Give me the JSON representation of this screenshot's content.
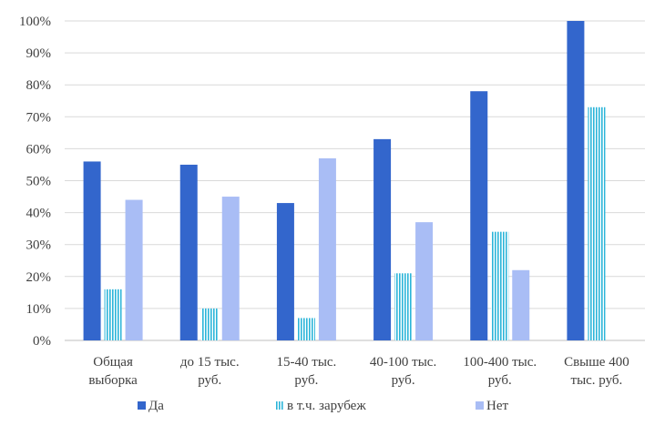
{
  "chart_data": {
    "type": "bar",
    "title": "",
    "xlabel": "",
    "ylabel": "",
    "ylim": [
      0,
      100
    ],
    "ytick_step": 10,
    "ytick_suffix": "%",
    "grid": true,
    "legend_position": "bottom",
    "categories": [
      [
        "Общая",
        "выборка"
      ],
      [
        "до 15 тыс.",
        "руб."
      ],
      [
        "15-40 тыс.",
        "руб."
      ],
      [
        "40-100 тыс.",
        "руб."
      ],
      [
        "100-400 тыс.",
        "руб."
      ],
      [
        "Свыше 400",
        "тыс. руб."
      ]
    ],
    "series": [
      {
        "name": "Да",
        "pattern": "solid",
        "color": "#3366cc",
        "values": [
          56,
          55,
          43,
          63,
          78,
          100
        ]
      },
      {
        "name": "в т.ч. зарубеж",
        "pattern": "striped",
        "color": "#2bb5d9",
        "values": [
          16,
          10,
          7,
          21,
          34,
          73
        ]
      },
      {
        "name": "Нет",
        "pattern": "solid",
        "color": "#a9bdf5",
        "values": [
          44,
          45,
          57,
          37,
          22,
          0
        ]
      }
    ]
  }
}
